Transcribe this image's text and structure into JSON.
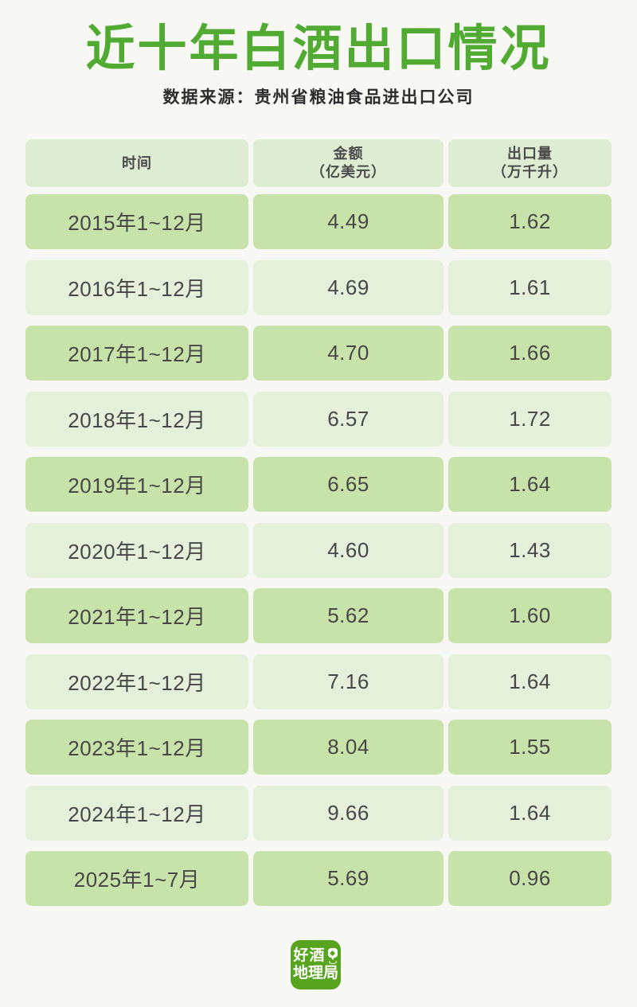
{
  "page": {
    "title": "近十年白酒出口情况",
    "source": "数据来源：贵州省粮油食品进出口公司"
  },
  "table": {
    "headers": [
      {
        "label": "时间",
        "sub": ""
      },
      {
        "label": "金额",
        "sub": "（亿美元）"
      },
      {
        "label": "出口量",
        "sub": "（万千升）"
      }
    ],
    "rows": [
      {
        "period": "2015年1~12月",
        "amount": "4.49",
        "volume": "1.62"
      },
      {
        "period": "2016年1~12月",
        "amount": "4.69",
        "volume": "1.61"
      },
      {
        "period": "2017年1~12月",
        "amount": "4.70",
        "volume": "1.66"
      },
      {
        "period": "2018年1~12月",
        "amount": "6.57",
        "volume": "1.72"
      },
      {
        "period": "2019年1~12月",
        "amount": "6.65",
        "volume": "1.64"
      },
      {
        "period": "2020年1~12月",
        "amount": "4.60",
        "volume": "1.43"
      },
      {
        "period": "2021年1~12月",
        "amount": "5.62",
        "volume": "1.60"
      },
      {
        "period": "2022年1~12月",
        "amount": "7.16",
        "volume": "1.64"
      },
      {
        "period": "2023年1~12月",
        "amount": "8.04",
        "volume": "1.55"
      },
      {
        "period": "2024年1~12月",
        "amount": "9.66",
        "volume": "1.64"
      },
      {
        "period": "2025年1~7月",
        "amount": "5.69",
        "volume": "0.96"
      }
    ]
  },
  "logo": {
    "line1": "好酒",
    "line2": "地理局",
    "icon": "location-pin-icon"
  },
  "colors": {
    "title_green": "#51ab33",
    "logo_green": "#57a41e",
    "header_cell": "#ddecd2",
    "row_dark": "#c7e3a9",
    "row_light": "#e5f0db",
    "text_dark": "#474747",
    "background": "#f7f7f4"
  },
  "chart_data": {
    "type": "table",
    "title": "近十年白酒出口情况",
    "subtitle": "数据来源：贵州省粮油食品进出口公司",
    "categories": [
      "2015年1~12月",
      "2016年1~12月",
      "2017年1~12月",
      "2018年1~12月",
      "2019年1~12月",
      "2020年1~12月",
      "2021年1~12月",
      "2022年1~12月",
      "2023年1~12月",
      "2024年1~12月",
      "2025年1~7月"
    ],
    "series": [
      {
        "name": "金额（亿美元）",
        "values": [
          4.49,
          4.69,
          4.7,
          6.57,
          6.65,
          4.6,
          5.62,
          7.16,
          8.04,
          9.66,
          5.69
        ]
      },
      {
        "name": "出口量（万千升）",
        "values": [
          1.62,
          1.61,
          1.66,
          1.72,
          1.64,
          1.43,
          1.6,
          1.64,
          1.55,
          1.64,
          0.96
        ]
      }
    ]
  }
}
